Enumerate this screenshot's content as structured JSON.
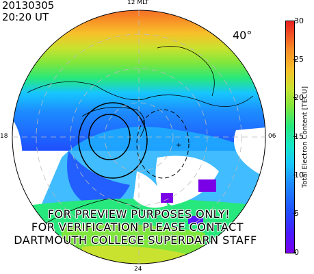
{
  "header": {
    "date": "20130305",
    "time": "20:20 UT"
  },
  "mlt_labels": {
    "top": "12 MLT",
    "bottom": "24",
    "left": "18",
    "right": "06"
  },
  "latitude_label": "40°",
  "watermark": [
    "FOR PREVIEW PURPOSES ONLY!",
    "FOR VERIFICATION PLEASE CONTACT",
    "DARTMOUTH COLLEGE SUPERDARN STAFF"
  ],
  "colorbar": {
    "title": "Total Electron Content [TECU]",
    "ticks": [
      "30",
      "25",
      "20",
      "15",
      "10",
      "5",
      "0"
    ],
    "range": [
      0,
      30
    ]
  },
  "colors": {
    "high": "#f05020",
    "mid_high": "#f7a020",
    "mid": "#c9e22f",
    "green": "#3ee070",
    "cyan": "#17c5ff",
    "blue": "#1f6fff",
    "low": "#7a00e8"
  }
}
